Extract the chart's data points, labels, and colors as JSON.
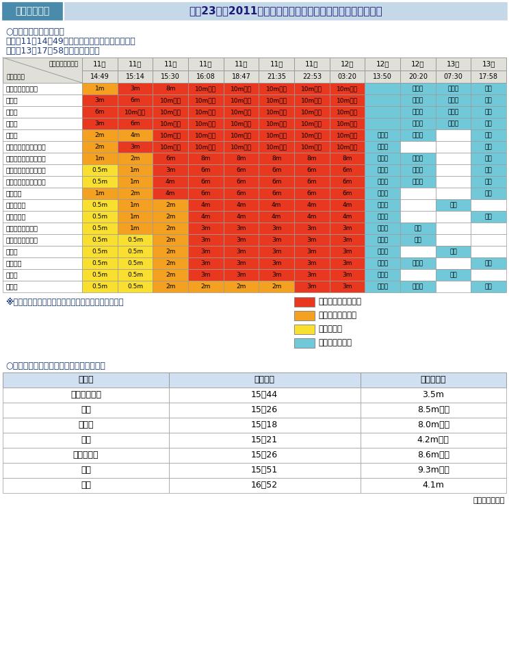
{
  "title_label": "表１－１－３",
  "title_text": "平成23年（2011年）東北地方太平洋沖地震を原因とする津波",
  "subtitle1": "○津波警報等の発表状況",
  "bullet1": "・３月11日14時49分　津波警報（大津波）等発表",
  "bullet2": "・３月13日17時58分　すべて解除",
  "header_days": [
    "11日",
    "11日",
    "11日",
    "11日",
    "11日",
    "11日",
    "11日",
    "12日",
    "12日",
    "12日",
    "13日",
    "13日"
  ],
  "header_times": [
    "14:49",
    "15:14",
    "15:30",
    "16:08",
    "18:47",
    "21:35",
    "22:53",
    "03:20",
    "13:50",
    "20:20",
    "07:30",
    "17:58"
  ],
  "row_labels": [
    "青森県太平洋沿岸",
    "岩手県",
    "宮城県",
    "福島県",
    "茨城県",
    "千葉県九十九里・外房",
    "北海道太平洋沿岸中部",
    "北海道太平洋沿岸東部",
    "北海道太平洋沿岸西部",
    "伊豆諸島",
    "千葉県内房",
    "小笠原諸島",
    "青森県日本海沿岸",
    "相模湾・三浦半島",
    "静岡県",
    "和歌山県",
    "徳島県",
    "高知県"
  ],
  "table_data": [
    [
      "1m",
      "3m",
      "8m",
      "10m以上",
      "10m以上",
      "10m以上",
      "10m以上",
      "10m以上",
      "",
      "切下げ",
      "切下げ",
      "解除"
    ],
    [
      "3m",
      "6m",
      "10m以上",
      "10m以上",
      "10m以上",
      "10m以上",
      "10m以上",
      "10m以上",
      "",
      "切下げ",
      "切下げ",
      "解除"
    ],
    [
      "6m",
      "10m以上",
      "10m以上",
      "10m以上",
      "10m以上",
      "10m以上",
      "10m以上",
      "10m以上",
      "",
      "切下げ",
      "切下げ",
      "解除"
    ],
    [
      "3m",
      "6m",
      "10m以上",
      "10m以上",
      "10m以上",
      "10m以上",
      "10m以上",
      "10m以上",
      "",
      "切下げ",
      "切下げ",
      "解除"
    ],
    [
      "2m",
      "4m",
      "10m以上",
      "10m以上",
      "10m以上",
      "10m以上",
      "10m以上",
      "10m以上",
      "切下げ",
      "切下げ",
      "",
      "解除"
    ],
    [
      "2m",
      "3m",
      "10m以上",
      "10m以上",
      "10m以上",
      "10m以上",
      "10m以上",
      "10m以上",
      "切下げ",
      "",
      "",
      "解除"
    ],
    [
      "1m",
      "2m",
      "6m",
      "8m",
      "8m",
      "8m",
      "8m",
      "8m",
      "切下げ",
      "切下げ",
      "",
      "解除"
    ],
    [
      "0.5m",
      "1m",
      "3m",
      "6m",
      "6m",
      "6m",
      "6m",
      "6m",
      "切下げ",
      "切下げ",
      "",
      "解除"
    ],
    [
      "0.5m",
      "1m",
      "4m",
      "6m",
      "6m",
      "6m",
      "6m",
      "6m",
      "切下げ",
      "切下げ",
      "",
      "解除"
    ],
    [
      "1m",
      "2m",
      "4m",
      "6m",
      "6m",
      "6m",
      "6m",
      "6m",
      "切下げ",
      "",
      "",
      "解除"
    ],
    [
      "0.5m",
      "1m",
      "2m",
      "4m",
      "4m",
      "4m",
      "4m",
      "4m",
      "切下げ",
      "",
      "解除",
      ""
    ],
    [
      "0.5m",
      "1m",
      "2m",
      "4m",
      "4m",
      "4m",
      "4m",
      "4m",
      "切下げ",
      "",
      "",
      "解除"
    ],
    [
      "0.5m",
      "1m",
      "2m",
      "3m",
      "3m",
      "3m",
      "3m",
      "3m",
      "切下げ",
      "解除",
      "",
      ""
    ],
    [
      "0.5m",
      "0.5m",
      "2m",
      "3m",
      "3m",
      "3m",
      "3m",
      "3m",
      "切下げ",
      "解除",
      "",
      ""
    ],
    [
      "0.5m",
      "0.5m",
      "2m",
      "3m",
      "3m",
      "3m",
      "3m",
      "3m",
      "切下げ",
      "",
      "解除",
      ""
    ],
    [
      "0.5m",
      "0.5m",
      "2m",
      "3m",
      "3m",
      "3m",
      "3m",
      "3m",
      "切下げ",
      "切下げ",
      "",
      "解除"
    ],
    [
      "0.5m",
      "0.5m",
      "2m",
      "3m",
      "3m",
      "3m",
      "3m",
      "3m",
      "切下げ",
      "",
      "解除",
      ""
    ],
    [
      "0.5m",
      "0.5m",
      "2m",
      "2m",
      "2m",
      "2m",
      "3m",
      "3m",
      "切下げ",
      "切下げ",
      "",
      "解除"
    ]
  ],
  "cell_colors": [
    [
      "#F4A020",
      "#E83820",
      "#E83820",
      "#E83820",
      "#E83820",
      "#E83820",
      "#E83820",
      "#E83820",
      "#70C8D8",
      "#70C8D8",
      "#70C8D8",
      "#70C8D8"
    ],
    [
      "#E83820",
      "#E83820",
      "#E83820",
      "#E83820",
      "#E83820",
      "#E83820",
      "#E83820",
      "#E83820",
      "#70C8D8",
      "#70C8D8",
      "#70C8D8",
      "#70C8D8"
    ],
    [
      "#E83820",
      "#E83820",
      "#E83820",
      "#E83820",
      "#E83820",
      "#E83820",
      "#E83820",
      "#E83820",
      "#70C8D8",
      "#70C8D8",
      "#70C8D8",
      "#70C8D8"
    ],
    [
      "#E83820",
      "#E83820",
      "#E83820",
      "#E83820",
      "#E83820",
      "#E83820",
      "#E83820",
      "#E83820",
      "#70C8D8",
      "#70C8D8",
      "#70C8D8",
      "#70C8D8"
    ],
    [
      "#F4A020",
      "#F4A020",
      "#E83820",
      "#E83820",
      "#E83820",
      "#E83820",
      "#E83820",
      "#E83820",
      "#70C8D8",
      "#70C8D8",
      "#FFFFFF",
      "#70C8D8"
    ],
    [
      "#F4A020",
      "#E83820",
      "#E83820",
      "#E83820",
      "#E83820",
      "#E83820",
      "#E83820",
      "#E83820",
      "#70C8D8",
      "#FFFFFF",
      "#FFFFFF",
      "#70C8D8"
    ],
    [
      "#F4A020",
      "#F4A020",
      "#E83820",
      "#E83820",
      "#E83820",
      "#E83820",
      "#E83820",
      "#E83820",
      "#70C8D8",
      "#70C8D8",
      "#FFFFFF",
      "#70C8D8"
    ],
    [
      "#F9E030",
      "#F4A020",
      "#E83820",
      "#E83820",
      "#E83820",
      "#E83820",
      "#E83820",
      "#E83820",
      "#70C8D8",
      "#70C8D8",
      "#FFFFFF",
      "#70C8D8"
    ],
    [
      "#F9E030",
      "#F4A020",
      "#E83820",
      "#E83820",
      "#E83820",
      "#E83820",
      "#E83820",
      "#E83820",
      "#70C8D8",
      "#70C8D8",
      "#FFFFFF",
      "#70C8D8"
    ],
    [
      "#F4A020",
      "#F4A020",
      "#E83820",
      "#E83820",
      "#E83820",
      "#E83820",
      "#E83820",
      "#E83820",
      "#70C8D8",
      "#FFFFFF",
      "#FFFFFF",
      "#70C8D8"
    ],
    [
      "#F9E030",
      "#F4A020",
      "#F4A020",
      "#E83820",
      "#E83820",
      "#E83820",
      "#E83820",
      "#E83820",
      "#70C8D8",
      "#FFFFFF",
      "#70C8D8",
      "#FFFFFF"
    ],
    [
      "#F9E030",
      "#F4A020",
      "#F4A020",
      "#E83820",
      "#E83820",
      "#E83820",
      "#E83820",
      "#E83820",
      "#70C8D8",
      "#FFFFFF",
      "#FFFFFF",
      "#70C8D8"
    ],
    [
      "#F9E030",
      "#F4A020",
      "#F4A020",
      "#E83820",
      "#E83820",
      "#E83820",
      "#E83820",
      "#E83820",
      "#70C8D8",
      "#70C8D8",
      "#FFFFFF",
      "#FFFFFF"
    ],
    [
      "#F9E030",
      "#F9E030",
      "#F4A020",
      "#E83820",
      "#E83820",
      "#E83820",
      "#E83820",
      "#E83820",
      "#70C8D8",
      "#70C8D8",
      "#FFFFFF",
      "#FFFFFF"
    ],
    [
      "#F9E030",
      "#F9E030",
      "#F4A020",
      "#E83820",
      "#E83820",
      "#E83820",
      "#E83820",
      "#E83820",
      "#70C8D8",
      "#FFFFFF",
      "#70C8D8",
      "#FFFFFF"
    ],
    [
      "#F9E030",
      "#F9E030",
      "#F4A020",
      "#E83820",
      "#E83820",
      "#E83820",
      "#E83820",
      "#E83820",
      "#70C8D8",
      "#70C8D8",
      "#FFFFFF",
      "#70C8D8"
    ],
    [
      "#F9E030",
      "#F9E030",
      "#F4A020",
      "#E83820",
      "#E83820",
      "#E83820",
      "#E83820",
      "#E83820",
      "#70C8D8",
      "#FFFFFF",
      "#70C8D8",
      "#FFFFFF"
    ],
    [
      "#F9E030",
      "#F9E030",
      "#F4A020",
      "#F4A020",
      "#F4A020",
      "#F4A020",
      "#E83820",
      "#E83820",
      "#70C8D8",
      "#70C8D8",
      "#FFFFFF",
      "#70C8D8"
    ]
  ],
  "legend_items": [
    {
      "color": "#E83820",
      "label": "津波警報（大津波）"
    },
    {
      "color": "#F4A020",
      "label": "津波警報（津波）"
    },
    {
      "color": "#F9E030",
      "label": "津波注意報"
    },
    {
      "color": "#70C8D8",
      "label": "津波なし・解除"
    }
  ],
  "note_text": "※津波警報（大津波）を発表した津波予報区のみ掲示",
  "subtitle2": "○津波の観測値（最大波）（津波観測点）",
  "obs_headers": [
    "地点名",
    "観測時刻",
    "津波の高さ"
  ],
  "obs_data": [
    [
      "えりも町庶野",
      "15：44",
      "3.5m"
    ],
    [
      "宮古",
      "15：26",
      "8.5m以上"
    ],
    [
      "大船渡",
      "15：18",
      "8.0m以上"
    ],
    [
      "釜石",
      "15：21",
      "4.2m以上"
    ],
    [
      "石巻市鮎川",
      "15：26",
      "8.6m以上"
    ],
    [
      "相馬",
      "15：51",
      "9.3m以上"
    ],
    [
      "大洗",
      "16：52",
      "4.1m"
    ]
  ],
  "source_text": "（気象庁資料）",
  "title_label_bg": "#4A8AAA",
  "title_text_bg": "#C5D8E8",
  "table_header_bg": "#E0E0D8",
  "obs_header_bg": "#D0E0F0"
}
